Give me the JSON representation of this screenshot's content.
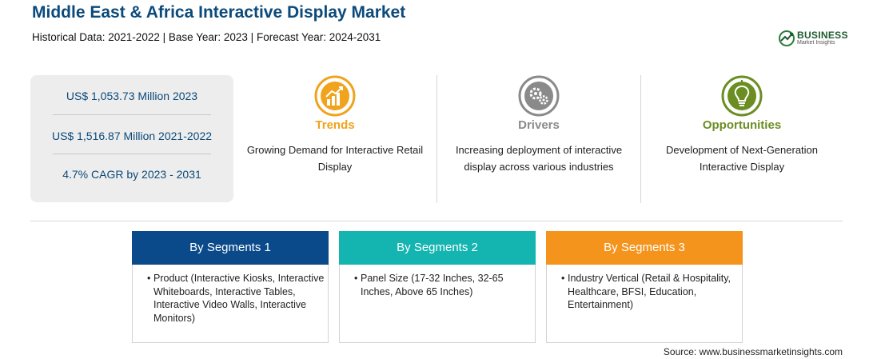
{
  "header": {
    "title": "Middle East & Africa Interactive Display Market",
    "subtitle": "Historical Data: 2021-2022 | Base Year: 2023 | Forecast Year: 2024-2031"
  },
  "logo": {
    "name": "BUSINESS",
    "tagline": "Market Insights"
  },
  "stats": [
    "US$ 1,053.73 Million 2023",
    "US$ 1,516.87 Million 2021-2022",
    "4.7% CAGR by 2023 - 2031"
  ],
  "features": [
    {
      "title": "Trends",
      "desc": "Growing Demand for Interactive Retail Display",
      "color": "#f0a31c",
      "icon": "growth-chart-icon"
    },
    {
      "title": "Drivers",
      "desc": "Increasing deployment of interactive display across various industries",
      "color": "#8a8a8a",
      "icon": "gears-icon"
    },
    {
      "title": "Opportunities",
      "desc": "Development of Next-Generation Interactive Display",
      "color": "#6b8e23",
      "icon": "lightbulb-icon"
    }
  ],
  "segments": [
    {
      "title": "By Segments 1",
      "color": "#0b4a8a",
      "body": "Product (Interactive Kiosks, Interactive Whiteboards, Interactive Tables, Interactive Video Walls, Interactive Monitors)"
    },
    {
      "title": "By Segments 2",
      "color": "#14b4b0",
      "body": "Panel Size (17-32 Inches, 32-65 Inches, Above 65 Inches)"
    },
    {
      "title": "By Segments 3",
      "color": "#f4941c",
      "body": "Industry Vertical (Retail & Hospitality, Healthcare, BFSI, Education, Entertainment)"
    }
  ],
  "source": "Source: www.businessmarketinsights.com"
}
